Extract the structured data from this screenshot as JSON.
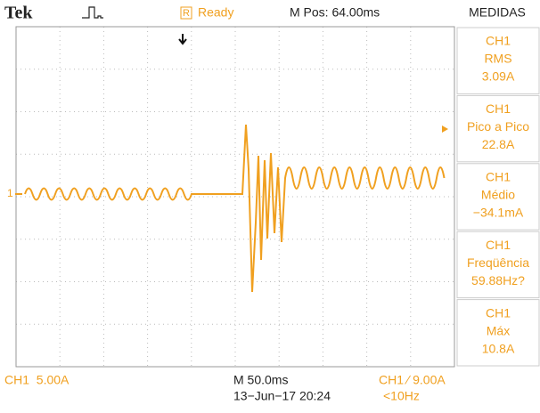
{
  "header": {
    "brand": "Tek",
    "status": "Ready",
    "status_icon": "R",
    "position": "M Pos: 64.00ms",
    "panel_title": "MEDIDAS"
  },
  "channel_marker": "1",
  "measurements": [
    {
      "source": "CH1",
      "name": "RMS",
      "value": "3.09A"
    },
    {
      "source": "CH1",
      "name": "Pico a Pico",
      "value": "22.8A"
    },
    {
      "source": "CH1",
      "name": "Médio",
      "value": "−34.1mA"
    },
    {
      "source": "CH1",
      "name": "Freqüência",
      "value": "59.88Hz?"
    },
    {
      "source": "CH1",
      "name": "Máx",
      "value": "10.8A"
    }
  ],
  "footer": {
    "channel_scale": "CH1  5.00A",
    "time_scale": "M 50.0ms",
    "date": "13−Jun−17 20:24",
    "trigger": "CH1 ∕ 9.00A",
    "trigger_freq": "<10Hz"
  }
}
